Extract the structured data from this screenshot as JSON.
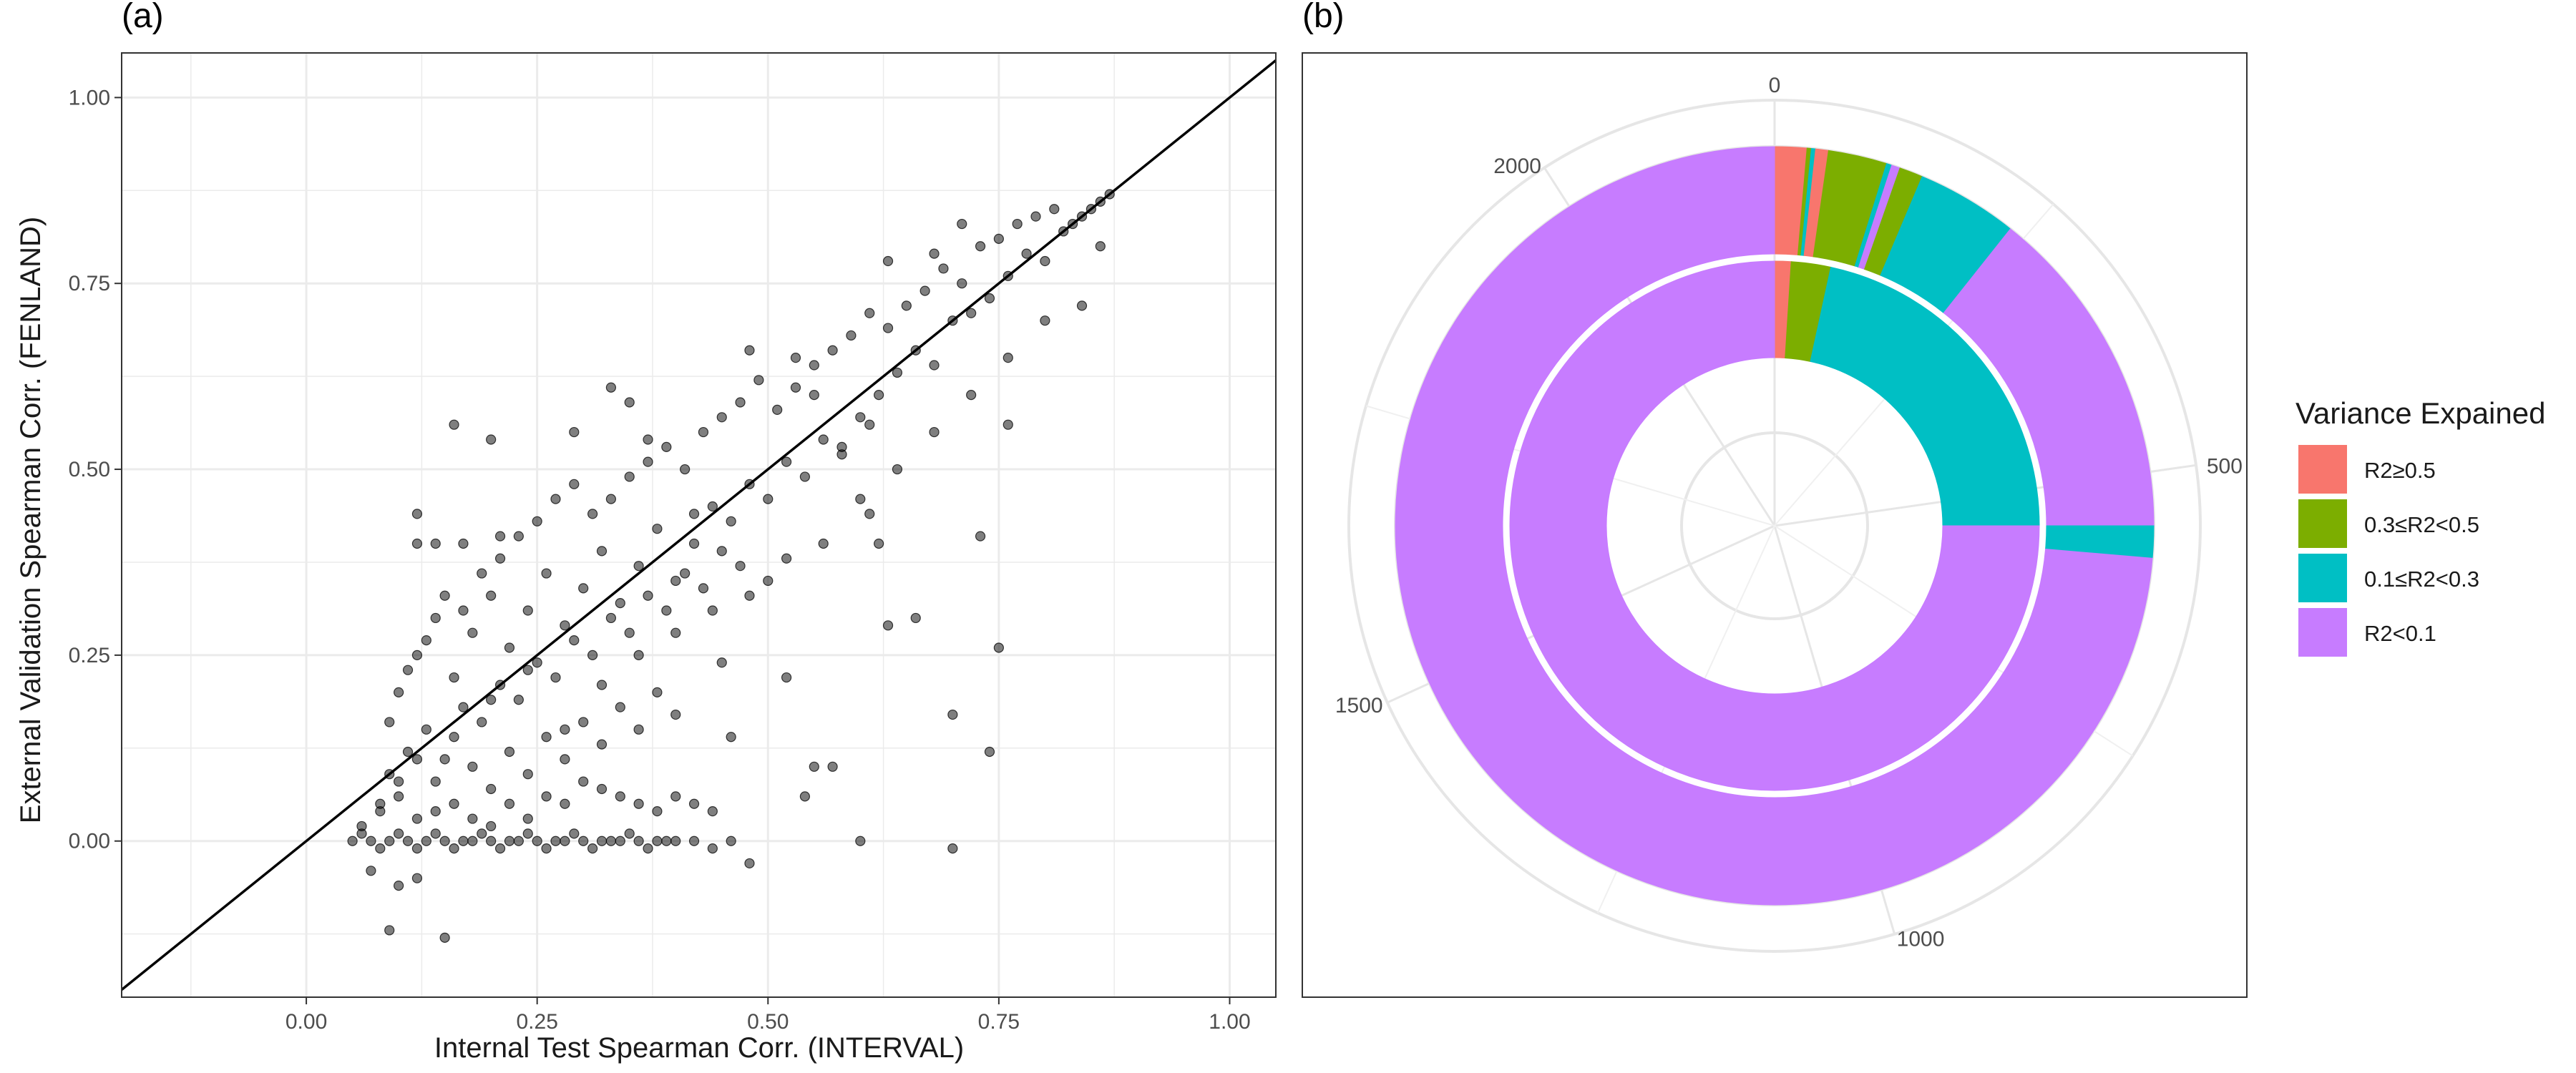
{
  "panel_a": {
    "label": "(a)",
    "xlabel": "Internal Test Spearman Corr. (INTERVAL)",
    "ylabel": "External Validation Spearman Corr. (FENLAND)",
    "xticks": [
      "0.00",
      "0.25",
      "0.50",
      "0.75",
      "1.00"
    ],
    "yticks": [
      "0.00",
      "0.25",
      "0.50",
      "0.75",
      "1.00"
    ]
  },
  "panel_b": {
    "label": "(b)",
    "angle_ticks": [
      "0",
      "500",
      "1000",
      "1500",
      "2000"
    ],
    "legend_title": "Variance Expained",
    "legend": [
      {
        "label": "R2≥0.5",
        "color": "#F8766D"
      },
      {
        "label": "0.3≤R2<0.5",
        "color": "#7CAE00"
      },
      {
        "label": "0.1≤R2<0.3",
        "color": "#00BFC4"
      },
      {
        "label": "R2<0.1",
        "color": "#C77CFF"
      }
    ]
  },
  "chart_data": [
    {
      "type": "scatter",
      "xlabel": "Internal Test Spearman Corr. (INTERVAL)",
      "ylabel": "External Validation Spearman Corr. (FENLAND)",
      "xlim": [
        -0.2,
        1.05
      ],
      "ylim": [
        -0.21,
        1.06
      ],
      "grid": true,
      "reference_line": {
        "slope": 1,
        "intercept": 0
      },
      "points": [
        [
          0.05,
          0.0
        ],
        [
          0.06,
          0.01
        ],
        [
          0.07,
          0.0
        ],
        [
          0.08,
          -0.01
        ],
        [
          0.09,
          0.0
        ],
        [
          0.1,
          0.01
        ],
        [
          0.11,
          0.0
        ],
        [
          0.12,
          -0.01
        ],
        [
          0.13,
          0.0
        ],
        [
          0.14,
          0.01
        ],
        [
          0.15,
          0.0
        ],
        [
          0.16,
          -0.01
        ],
        [
          0.17,
          0.0
        ],
        [
          0.18,
          0.0
        ],
        [
          0.19,
          0.01
        ],
        [
          0.2,
          0.0
        ],
        [
          0.21,
          -0.01
        ],
        [
          0.22,
          0.0
        ],
        [
          0.23,
          0.0
        ],
        [
          0.24,
          0.01
        ],
        [
          0.25,
          0.0
        ],
        [
          0.26,
          -0.01
        ],
        [
          0.27,
          0.0
        ],
        [
          0.28,
          0.0
        ],
        [
          0.29,
          0.01
        ],
        [
          0.3,
          0.0
        ],
        [
          0.31,
          -0.01
        ],
        [
          0.32,
          0.0
        ],
        [
          0.33,
          0.0
        ],
        [
          0.34,
          0.0
        ],
        [
          0.35,
          0.01
        ],
        [
          0.36,
          0.0
        ],
        [
          0.37,
          -0.01
        ],
        [
          0.38,
          0.0
        ],
        [
          0.39,
          0.0
        ],
        [
          0.4,
          0.0
        ],
        [
          0.42,
          0.0
        ],
        [
          0.44,
          -0.01
        ],
        [
          0.46,
          0.0
        ],
        [
          0.08,
          0.04
        ],
        [
          0.1,
          0.06
        ],
        [
          0.12,
          0.03
        ],
        [
          0.14,
          0.08
        ],
        [
          0.16,
          0.05
        ],
        [
          0.18,
          0.1
        ],
        [
          0.2,
          0.07
        ],
        [
          0.22,
          0.12
        ],
        [
          0.24,
          0.09
        ],
        [
          0.26,
          0.14
        ],
        [
          0.28,
          0.11
        ],
        [
          0.3,
          0.16
        ],
        [
          0.32,
          0.13
        ],
        [
          0.34,
          0.18
        ],
        [
          0.36,
          0.15
        ],
        [
          0.38,
          0.2
        ],
        [
          0.4,
          0.17
        ],
        [
          0.09,
          0.09
        ],
        [
          0.11,
          0.12
        ],
        [
          0.13,
          0.15
        ],
        [
          0.15,
          0.11
        ],
        [
          0.17,
          0.18
        ],
        [
          0.19,
          0.16
        ],
        [
          0.21,
          0.21
        ],
        [
          0.23,
          0.19
        ],
        [
          0.25,
          0.24
        ],
        [
          0.27,
          0.22
        ],
        [
          0.29,
          0.27
        ],
        [
          0.31,
          0.25
        ],
        [
          0.33,
          0.3
        ],
        [
          0.35,
          0.28
        ],
        [
          0.37,
          0.33
        ],
        [
          0.39,
          0.31
        ],
        [
          0.41,
          0.36
        ],
        [
          0.43,
          0.34
        ],
        [
          0.45,
          0.39
        ],
        [
          0.47,
          0.37
        ],
        [
          0.1,
          0.2
        ],
        [
          0.12,
          0.25
        ],
        [
          0.14,
          0.3
        ],
        [
          0.16,
          0.22
        ],
        [
          0.18,
          0.28
        ],
        [
          0.2,
          0.33
        ],
        [
          0.22,
          0.26
        ],
        [
          0.24,
          0.31
        ],
        [
          0.26,
          0.36
        ],
        [
          0.28,
          0.29
        ],
        [
          0.3,
          0.34
        ],
        [
          0.32,
          0.39
        ],
        [
          0.34,
          0.32
        ],
        [
          0.36,
          0.37
        ],
        [
          0.38,
          0.42
        ],
        [
          0.4,
          0.35
        ],
        [
          0.42,
          0.4
        ],
        [
          0.44,
          0.45
        ],
        [
          0.46,
          0.43
        ],
        [
          0.48,
          0.48
        ],
        [
          0.5,
          0.46
        ],
        [
          0.52,
          0.51
        ],
        [
          0.54,
          0.49
        ],
        [
          0.56,
          0.54
        ],
        [
          0.58,
          0.52
        ],
        [
          0.6,
          0.57
        ],
        [
          0.62,
          0.6
        ],
        [
          0.64,
          0.63
        ],
        [
          0.66,
          0.66
        ],
        [
          0.68,
          0.64
        ],
        [
          0.7,
          0.7
        ],
        [
          0.72,
          0.71
        ],
        [
          0.74,
          0.73
        ],
        [
          0.76,
          0.76
        ],
        [
          0.78,
          0.79
        ],
        [
          0.8,
          0.78
        ],
        [
          0.82,
          0.82
        ],
        [
          0.84,
          0.84
        ],
        [
          0.86,
          0.86
        ],
        [
          0.87,
          0.87
        ],
        [
          0.12,
          0.4
        ],
        [
          0.14,
          0.4
        ],
        [
          0.17,
          0.4
        ],
        [
          0.21,
          0.41
        ],
        [
          0.16,
          0.56
        ],
        [
          0.2,
          0.54
        ],
        [
          0.29,
          0.55
        ],
        [
          0.33,
          0.61
        ],
        [
          0.35,
          0.59
        ],
        [
          0.37,
          0.54
        ],
        [
          0.42,
          0.44
        ],
        [
          0.48,
          0.66
        ],
        [
          0.53,
          0.65
        ],
        [
          0.55,
          0.6
        ],
        [
          0.58,
          0.53
        ],
        [
          0.61,
          0.56
        ],
        [
          0.63,
          0.78
        ],
        [
          0.68,
          0.79
        ],
        [
          0.71,
          0.83
        ],
        [
          0.76,
          0.56
        ],
        [
          0.55,
          0.1
        ],
        [
          0.54,
          0.06
        ],
        [
          0.63,
          0.29
        ],
        [
          0.66,
          0.3
        ],
        [
          0.7,
          0.17
        ],
        [
          0.74,
          0.12
        ],
        [
          0.75,
          0.26
        ],
        [
          0.73,
          0.41
        ],
        [
          0.61,
          0.44
        ],
        [
          0.62,
          0.4
        ],
        [
          0.07,
          -0.04
        ],
        [
          0.1,
          -0.06
        ],
        [
          0.12,
          -0.05
        ],
        [
          0.09,
          -0.12
        ],
        [
          0.15,
          -0.13
        ],
        [
          0.12,
          0.44
        ],
        [
          0.48,
          -0.03
        ],
        [
          0.44,
          0.04
        ],
        [
          0.46,
          0.14
        ],
        [
          0.7,
          -0.01
        ],
        [
          0.6,
          0.0
        ],
        [
          0.57,
          0.1
        ],
        [
          0.5,
          0.35
        ],
        [
          0.52,
          0.22
        ],
        [
          0.45,
          0.24
        ],
        [
          0.06,
          0.02
        ],
        [
          0.08,
          0.05
        ],
        [
          0.1,
          0.08
        ],
        [
          0.12,
          0.11
        ],
        [
          0.14,
          0.04
        ],
        [
          0.16,
          0.14
        ],
        [
          0.18,
          0.03
        ],
        [
          0.2,
          0.19
        ],
        [
          0.22,
          0.05
        ],
        [
          0.24,
          0.23
        ],
        [
          0.26,
          0.06
        ],
        [
          0.28,
          0.05
        ],
        [
          0.3,
          0.08
        ],
        [
          0.32,
          0.07
        ],
        [
          0.34,
          0.06
        ],
        [
          0.36,
          0.05
        ],
        [
          0.38,
          0.04
        ],
        [
          0.4,
          0.06
        ],
        [
          0.42,
          0.05
        ],
        [
          0.09,
          0.16
        ],
        [
          0.11,
          0.23
        ],
        [
          0.13,
          0.27
        ],
        [
          0.15,
          0.33
        ],
        [
          0.17,
          0.31
        ],
        [
          0.19,
          0.36
        ],
        [
          0.21,
          0.38
        ],
        [
          0.23,
          0.41
        ],
        [
          0.25,
          0.43
        ],
        [
          0.27,
          0.46
        ],
        [
          0.29,
          0.48
        ],
        [
          0.31,
          0.44
        ],
        [
          0.33,
          0.46
        ],
        [
          0.35,
          0.49
        ],
        [
          0.37,
          0.51
        ],
        [
          0.39,
          0.53
        ],
        [
          0.41,
          0.5
        ],
        [
          0.43,
          0.55
        ],
        [
          0.45,
          0.57
        ],
        [
          0.47,
          0.59
        ],
        [
          0.49,
          0.62
        ],
        [
          0.51,
          0.58
        ],
        [
          0.53,
          0.61
        ],
        [
          0.55,
          0.64
        ],
        [
          0.57,
          0.66
        ],
        [
          0.59,
          0.68
        ],
        [
          0.61,
          0.71
        ],
        [
          0.63,
          0.69
        ],
        [
          0.65,
          0.72
        ],
        [
          0.67,
          0.74
        ],
        [
          0.69,
          0.77
        ],
        [
          0.71,
          0.75
        ],
        [
          0.73,
          0.8
        ],
        [
          0.75,
          0.81
        ],
        [
          0.77,
          0.83
        ],
        [
          0.79,
          0.84
        ],
        [
          0.81,
          0.85
        ],
        [
          0.83,
          0.83
        ],
        [
          0.85,
          0.85
        ],
        [
          0.2,
          0.02
        ],
        [
          0.24,
          0.03
        ],
        [
          0.28,
          0.15
        ],
        [
          0.32,
          0.21
        ],
        [
          0.36,
          0.25
        ],
        [
          0.4,
          0.28
        ],
        [
          0.44,
          0.31
        ],
        [
          0.48,
          0.33
        ],
        [
          0.52,
          0.38
        ],
        [
          0.56,
          0.4
        ],
        [
          0.6,
          0.46
        ],
        [
          0.64,
          0.5
        ],
        [
          0.68,
          0.55
        ],
        [
          0.72,
          0.6
        ],
        [
          0.76,
          0.65
        ],
        [
          0.8,
          0.7
        ],
        [
          0.84,
          0.72
        ],
        [
          0.86,
          0.8
        ]
      ]
    },
    {
      "type": "pie",
      "subtype": "donut-polar",
      "angle_scale": {
        "min": 0,
        "max": 2200,
        "ticks": [
          0,
          500,
          1000,
          1500,
          2000
        ]
      },
      "categories": [
        "R2≥0.5",
        "0.3≤R2<0.5",
        "0.1≤R2<0.3",
        "R2<0.1"
      ],
      "rings": [
        {
          "name": "outer",
          "segments": [
            {
              "category": "R2≥0.5",
              "start": 0,
              "end": 30
            },
            {
              "category": "0.3≤R2<0.5",
              "start": 30,
              "end": 34
            },
            {
              "category": "0.1≤R2<0.3",
              "start": 34,
              "end": 38
            },
            {
              "category": "R2≥0.5",
              "start": 38,
              "end": 50
            },
            {
              "category": "0.3≤R2<0.5",
              "start": 50,
              "end": 105
            },
            {
              "category": "0.1≤R2<0.3",
              "start": 105,
              "end": 110
            },
            {
              "category": "R2<0.1",
              "start": 110,
              "end": 118
            },
            {
              "category": "0.3≤R2<0.5",
              "start": 118,
              "end": 140
            },
            {
              "category": "0.1≤R2<0.3",
              "start": 140,
              "end": 235
            },
            {
              "category": "R2<0.1",
              "start": 235,
              "end": 550
            },
            {
              "category": "0.1≤R2<0.3",
              "start": 550,
              "end": 580
            },
            {
              "category": "R2<0.1",
              "start": 580,
              "end": 2200
            }
          ]
        },
        {
          "name": "inner",
          "segments": [
            {
              "category": "R2≥0.5",
              "start": 0,
              "end": 22
            },
            {
              "category": "0.3≤R2<0.5",
              "start": 22,
              "end": 75
            },
            {
              "category": "0.1≤R2<0.3",
              "start": 75,
              "end": 550
            },
            {
              "category": "R2<0.1",
              "start": 550,
              "end": 2200
            }
          ]
        }
      ]
    }
  ]
}
